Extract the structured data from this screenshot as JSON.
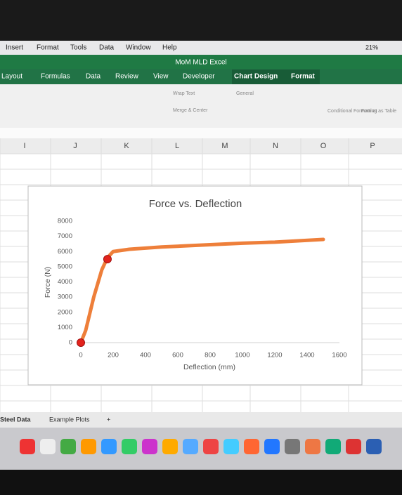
{
  "menu": [
    "Insert",
    "Format",
    "Tools",
    "Data",
    "Window",
    "Help"
  ],
  "battery": "21%",
  "window_title": "MoM MLD Excel",
  "ribbon_tabs": [
    "Layout",
    "Formulas",
    "Data",
    "Review",
    "View",
    "Developer",
    "Chart Design",
    "Format"
  ],
  "ribbon_items": [
    "Wrap Text",
    "Merge & Center",
    "General",
    "Conditional Formatting",
    "Format as Table"
  ],
  "columns": [
    "I",
    "J",
    "K",
    "L",
    "M",
    "N",
    "O",
    "P"
  ],
  "sheet_tabs": [
    "Steel Data",
    "Example Plots",
    "+"
  ],
  "chart_data": {
    "type": "scatter",
    "title": "Force vs. Deflection",
    "x_label": "Deflection (mm)",
    "y_label": "Force (N)",
    "xlim": [
      0,
      1600
    ],
    "xticks": [
      0,
      200,
      400,
      600,
      800,
      1000,
      1200,
      1400,
      1600
    ],
    "ylim": [
      0,
      8000
    ],
    "yticks": [
      0,
      1000,
      2000,
      3000,
      4000,
      5000,
      6000,
      7000,
      8000
    ],
    "grid": false,
    "series": [
      {
        "mode": "line",
        "color": "#ee7f3a",
        "x": [
          0,
          30,
          80,
          130,
          165,
          200,
          300,
          500,
          800,
          1000,
          1200,
          1500
        ],
        "values": [
          0,
          800,
          3000,
          4800,
          5600,
          6000,
          6150,
          6300,
          6450,
          6550,
          6620,
          6800
        ]
      },
      {
        "mode": "markers",
        "color": "#e3231c",
        "x": [
          0,
          165
        ],
        "values": [
          0,
          5500
        ]
      }
    ]
  }
}
